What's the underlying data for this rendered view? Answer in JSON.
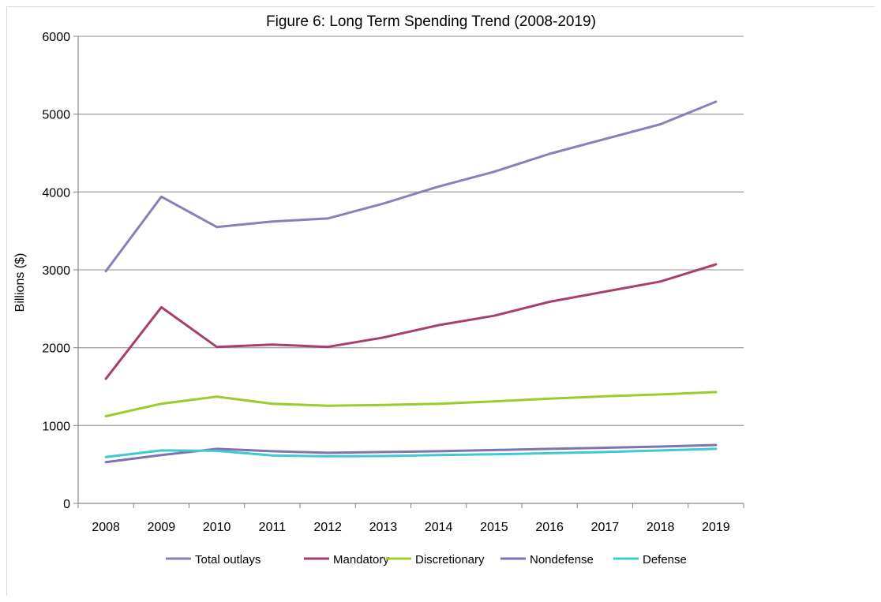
{
  "chart_data": {
    "type": "line",
    "title": "Figure 6: Long Term Spending Trend (2008-2019)",
    "xlabel": "",
    "ylabel": "Billions ($)",
    "ylim": [
      0,
      6000
    ],
    "yticks": [
      "0",
      "1000",
      "2000",
      "3000",
      "4000",
      "5000",
      "6000"
    ],
    "categories": [
      "2008",
      "2009",
      "2010",
      "2011",
      "2012",
      "2013",
      "2014",
      "2015",
      "2016",
      "2017",
      "2018",
      "2019"
    ],
    "grid": true,
    "legend_position": "bottom",
    "series": [
      {
        "name": "Total outlays",
        "color": "#8a7fb8",
        "values": [
          2983,
          3940,
          3550,
          3620,
          3660,
          3850,
          4070,
          4260,
          4490,
          4680,
          4870,
          5160
        ]
      },
      {
        "name": "Mandatory",
        "color": "#a83e6e",
        "values": [
          1600,
          2520,
          2010,
          2040,
          2010,
          2130,
          2290,
          2410,
          2590,
          2720,
          2850,
          3070
        ]
      },
      {
        "name": "Discretionary",
        "color": "#9bcc29",
        "values": [
          1120,
          1280,
          1370,
          1280,
          1255,
          1265,
          1280,
          1310,
          1345,
          1375,
          1400,
          1430
        ]
      },
      {
        "name": "Nondefense",
        "color": "#7f72b3",
        "values": [
          530,
          620,
          700,
          670,
          650,
          660,
          670,
          685,
          700,
          715,
          730,
          750
        ]
      },
      {
        "name": "Defense",
        "color": "#3ec9d3",
        "values": [
          595,
          680,
          675,
          615,
          605,
          608,
          620,
          630,
          645,
          660,
          680,
          700
        ]
      }
    ]
  }
}
